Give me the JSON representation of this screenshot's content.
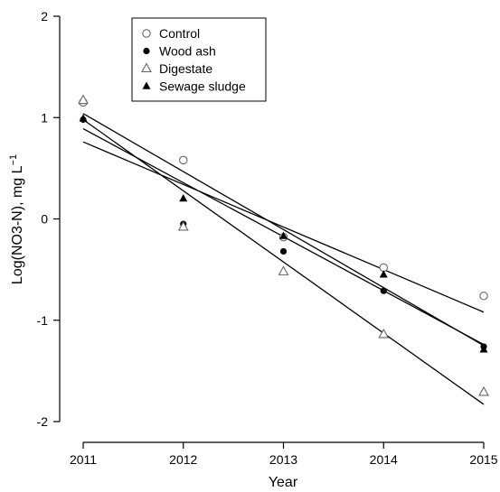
{
  "chart_data": {
    "type": "scatter",
    "title": "",
    "xlabel": "Year",
    "ylabel_main": "Log(NO3-N), mg L",
    "ylabel_sup": "−1",
    "xlim": [
      2011,
      2015
    ],
    "ylim": [
      -2,
      2
    ],
    "xticks": [
      2011,
      2012,
      2013,
      2014,
      2015
    ],
    "xtick_labels": [
      "2011",
      "2012",
      "2013",
      "2014",
      "2015"
    ],
    "yticks": [
      -2,
      -1,
      0,
      1,
      2
    ],
    "ytick_labels": [
      "-2",
      "-1",
      "0",
      "1",
      "2"
    ],
    "grid": false,
    "legend_position": "top-left",
    "series": [
      {
        "name": "Control",
        "marker": "open-circle",
        "x": [
          2011,
          2012,
          2013,
          2014,
          2015
        ],
        "y": [
          1.15,
          0.58,
          -0.18,
          -0.48,
          -0.76
        ],
        "fit": {
          "intercept_at_2011": 0.76,
          "slope": -0.42
        }
      },
      {
        "name": "Wood ash",
        "marker": "filled-circle",
        "x": [
          2011,
          2012,
          2013,
          2014,
          2015
        ],
        "y": [
          0.98,
          -0.05,
          -0.32,
          -0.71,
          -1.26
        ],
        "fit": {
          "intercept_at_2011": 0.89,
          "slope": -0.5325
        }
      },
      {
        "name": "Digestate",
        "marker": "open-triangle",
        "x": [
          2011,
          2012,
          2013,
          2014,
          2015
        ],
        "y": [
          1.17,
          -0.08,
          -0.52,
          -1.14,
          -1.71
        ],
        "fit": {
          "intercept_at_2011": 0.98,
          "slope": -0.7025
        }
      },
      {
        "name": "Sewage sludge",
        "marker": "filled-triangle",
        "x": [
          2011,
          2012,
          2013,
          2014,
          2015
        ],
        "y": [
          0.99,
          0.2,
          -0.17,
          -0.55,
          -1.29
        ],
        "fit": {
          "intercept_at_2011": 1.04,
          "slope": -0.5725
        }
      }
    ]
  }
}
